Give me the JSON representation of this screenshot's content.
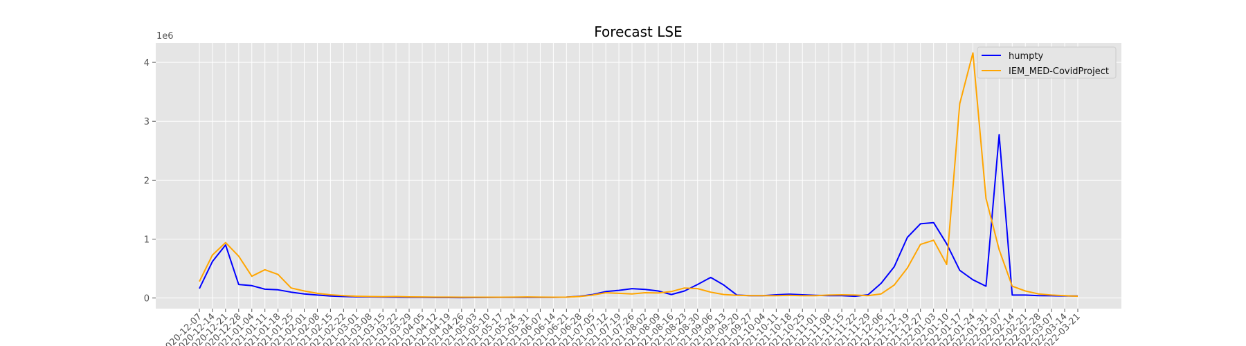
{
  "chart_data": {
    "type": "line",
    "title": "Forecast LSE",
    "xlabel": "",
    "ylabel": "",
    "y_offset_label": "1e6",
    "ylim": [
      -180000,
      4330000
    ],
    "yticks": [
      0,
      1,
      2,
      3,
      4
    ],
    "grid": true,
    "legend_position": "upper right",
    "background": "#e5e5e5",
    "categories": [
      "2020-12-07",
      "2020-12-14",
      "2020-12-21",
      "2020-12-28",
      "2021-01-04",
      "2021-01-11",
      "2021-01-18",
      "2021-01-25",
      "2021-02-01",
      "2021-02-08",
      "2021-02-15",
      "2021-02-22",
      "2021-03-01",
      "2021-03-08",
      "2021-03-15",
      "2021-03-22",
      "2021-03-29",
      "2021-04-05",
      "2021-04-12",
      "2021-04-19",
      "2021-04-26",
      "2021-05-03",
      "2021-05-10",
      "2021-05-17",
      "2021-05-24",
      "2021-05-31",
      "2021-06-07",
      "2021-06-14",
      "2021-06-21",
      "2021-06-28",
      "2021-07-05",
      "2021-07-12",
      "2021-07-19",
      "2021-07-26",
      "2021-08-02",
      "2021-08-09",
      "2021-08-16",
      "2021-08-23",
      "2021-08-30",
      "2021-09-06",
      "2021-09-13",
      "2021-09-20",
      "2021-09-27",
      "2021-10-04",
      "2021-10-11",
      "2021-10-18",
      "2021-10-25",
      "2021-11-01",
      "2021-11-08",
      "2021-11-15",
      "2021-11-22",
      "2021-11-29",
      "2021-12-06",
      "2021-12-12",
      "2021-12-19",
      "2021-12-27",
      "2022-01-03",
      "2022-01-10",
      "2022-01-17",
      "2022-01-24",
      "2022-01-31",
      "2022-02-07",
      "2022-02-14",
      "2022-02-21",
      "2022-02-28",
      "2022-03-07",
      "2022-03-14",
      "2022-03-21"
    ],
    "series": [
      {
        "name": "humpty",
        "color": "#0000ff",
        "values": [
          160000,
          620000,
          900000,
          230000,
          210000,
          150000,
          140000,
          100000,
          70000,
          50000,
          35000,
          25000,
          20000,
          18000,
          15000,
          14000,
          12000,
          10000,
          8000,
          8000,
          7000,
          8000,
          9000,
          10000,
          12000,
          12000,
          12000,
          12000,
          15000,
          30000,
          60000,
          110000,
          130000,
          160000,
          145000,
          120000,
          60000,
          120000,
          230000,
          350000,
          220000,
          50000,
          40000,
          40000,
          55000,
          65000,
          55000,
          45000,
          40000,
          40000,
          30000,
          55000,
          250000,
          530000,
          1030000,
          1260000,
          1280000,
          920000,
          470000,
          310000,
          200000,
          2770000,
          50000,
          50000,
          40000,
          38000,
          36000,
          35000
        ]
      },
      {
        "name": "IEM_MED-CovidProject",
        "color": "#ffa500",
        "values": [
          280000,
          730000,
          940000,
          710000,
          370000,
          480000,
          400000,
          170000,
          120000,
          80000,
          55000,
          40000,
          30000,
          25000,
          22000,
          25000,
          20000,
          18000,
          15000,
          15000,
          14000,
          14000,
          14000,
          14000,
          15000,
          18000,
          15000,
          14000,
          15000,
          25000,
          50000,
          90000,
          80000,
          70000,
          90000,
          85000,
          110000,
          170000,
          160000,
          100000,
          60000,
          45000,
          40000,
          40000,
          40000,
          45000,
          40000,
          40000,
          50000,
          55000,
          50000,
          40000,
          70000,
          220000,
          510000,
          910000,
          980000,
          570000,
          3300000,
          4160000,
          1690000,
          820000,
          200000,
          120000,
          70000,
          50000,
          40000,
          30000
        ]
      }
    ]
  }
}
